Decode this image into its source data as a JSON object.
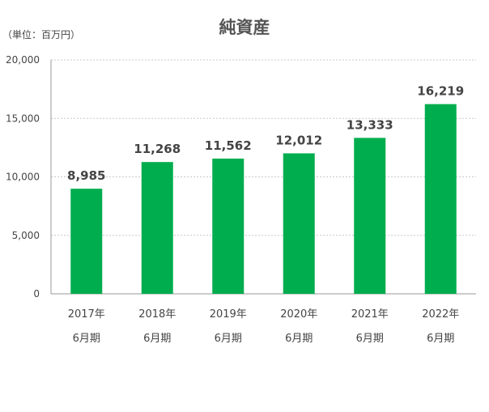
{
  "page": {
    "title": "純資産",
    "unit_label": "（単位：百万円）"
  },
  "chart_data": {
    "type": "bar",
    "title": "純資産",
    "unit": "（単位：百万円）",
    "categories": [
      [
        "2017年",
        "6月期"
      ],
      [
        "2018年",
        "6月期"
      ],
      [
        "2019年",
        "6月期"
      ],
      [
        "2020年",
        "6月期"
      ],
      [
        "2021年",
        "6月期"
      ],
      [
        "2022年",
        "6月期"
      ]
    ],
    "values": [
      8985,
      11268,
      11562,
      12012,
      13333,
      16219
    ],
    "value_labels": [
      "8,985",
      "11,268",
      "11,562",
      "12,012",
      "13,333",
      "16,219"
    ],
    "ylim": [
      0,
      20000
    ],
    "yticks": [
      0,
      5000,
      10000,
      15000,
      20000
    ],
    "ytick_labels": [
      "0",
      "5,000",
      "10,000",
      "15,000",
      "20,000"
    ],
    "grid": true,
    "bar_color": "#00ad4e",
    "grid_color": "#c8c8c8",
    "axis_color": "#999999"
  }
}
